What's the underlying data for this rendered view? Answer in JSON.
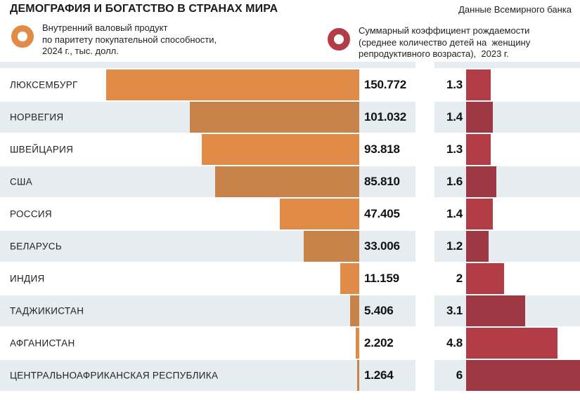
{
  "header": {
    "title": "ДЕМОГРАФИЯ И БОГАТСТВО В СТРАНАХ МИРА",
    "source": "Данные Всемирного банка"
  },
  "legend": {
    "gdp": {
      "label": "Внутренний валовый продукт\nпо паритету покупательной способности,\n2024 г., тыс. долл.",
      "color": "#e08c48"
    },
    "fertility": {
      "label": "Суммарный коэффициент рождаемости\n(среднее количество детей на  женщину\nрепродуктивного возраста),  2023 г.",
      "color": "#b33d47"
    }
  },
  "colors": {
    "bar_orange_light": "#e08c48",
    "bar_orange_dark": "#c8834a",
    "bar_red_light": "#b33d47",
    "bar_red_dark": "#9e3842",
    "row_shaded_bg": "#e6edf0",
    "row_plain_bg": "#ffffff",
    "text": "#1a1a1a"
  },
  "chart_data": {
    "type": "bar",
    "orientation": "horizontal",
    "title": "ДЕМОГРАФИЯ И БОГАТСТВО В СТРАНАХ МИРА",
    "source": "Данные Всемирного банка",
    "legend_position": "top",
    "categories": [
      "ЛЮКСЕМБУРГ",
      "НОРВЕГИЯ",
      "ШВЕЙЦАРИЯ",
      "США",
      "РОССИЯ",
      "БЕЛАРУСЬ",
      "ИНДИЯ",
      "ТАДЖИКИСТАН",
      "АФГАНИСТАН",
      "ЦЕНТРАЛЬНОАФРИКАНСКАЯ РЕСПУБЛИКА"
    ],
    "series": [
      {
        "name": "Внутренний валовый продукт по паритету покупательной способности, 2024 г., тыс. долл.",
        "values": [
          150.772,
          101.032,
          93.818,
          85.81,
          47.405,
          33.006,
          11.159,
          5.406,
          2.202,
          1.264
        ],
        "labels": [
          "150.772",
          "101.032",
          "93.818",
          "85.810",
          "47.405",
          "33.006",
          "11.159",
          "5.406",
          "2.202",
          "1.264"
        ],
        "axis_max": 150.772,
        "bar_alignment": "right-edge"
      },
      {
        "name": "Суммарный коэффициент рождаемости (среднее количество детей на женщину репродуктивного возраста), 2023 г.",
        "values": [
          1.3,
          1.4,
          1.3,
          1.6,
          1.4,
          1.2,
          2,
          3.1,
          4.8,
          6
        ],
        "labels": [
          "1.3",
          "1.4",
          "1.3",
          "1.6",
          "1.4",
          "1.2",
          "2",
          "3.1",
          "4.8",
          "6"
        ],
        "axis_max": 6,
        "bar_alignment": "left-edge"
      }
    ]
  }
}
